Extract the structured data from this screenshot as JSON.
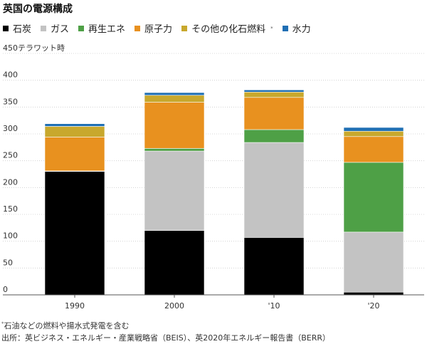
{
  "title": "英国の電源構成",
  "footnote_mark": "*",
  "footnote": "石油などの燃料や揚水式発電を含む",
  "source": "出所：英ビジネス・エネルギー・産業戦略省（BEIS）、英2020年エネルギー報告書（BERR）",
  "chart_data": {
    "type": "bar",
    "stacked": true,
    "categories": [
      "1990",
      "2000",
      "'10",
      "'20"
    ],
    "ylabel": "テラワット時",
    "ylim": [
      0,
      450
    ],
    "yticks": [
      0,
      50,
      100,
      150,
      200,
      250,
      300,
      350,
      400,
      450
    ],
    "top_tick_label": "450テラワット時",
    "grid": true,
    "legend_position": "top-left",
    "series": [
      {
        "name": "石炭",
        "color": "#000000",
        "values": [
          230,
          120,
          107,
          5
        ]
      },
      {
        "name": "ガス",
        "color": "#c3c3c3",
        "values": [
          1,
          148,
          177,
          112
        ]
      },
      {
        "name": "再生エネ",
        "color": "#4ea046",
        "values": [
          0,
          5,
          24,
          130
        ]
      },
      {
        "name": "原子力",
        "color": "#e8911f",
        "values": [
          63,
          86,
          60,
          48
        ]
      },
      {
        "name": "その他の化石燃料",
        "color": "#c8a82d",
        "values": [
          20,
          13,
          10,
          10
        ],
        "marker": "*"
      },
      {
        "name": "水力",
        "color": "#1f6fb4",
        "values": [
          5,
          5,
          4,
          7
        ]
      }
    ]
  }
}
